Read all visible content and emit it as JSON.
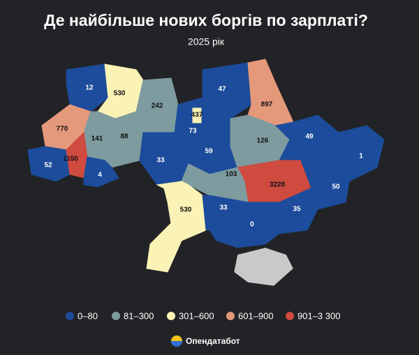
{
  "title": "Де найбільше нових боргів по зарплаті?",
  "subtitle": "2025 рік",
  "regions": [
    {
      "value": 12,
      "color": "#1c4c9b"
    },
    {
      "value": 530,
      "color": "#fbf3b5"
    },
    {
      "value": 242,
      "color": "#7e9b9f"
    },
    {
      "value": 73,
      "color": "#1c4c9b"
    },
    {
      "value": 47,
      "color": "#1c4c9b"
    },
    {
      "value": 897,
      "color": "#e3997a"
    },
    {
      "value": 770,
      "color": "#e3997a"
    },
    {
      "value": 141,
      "color": "#7e9b9f"
    },
    {
      "value": 88,
      "color": "#7e9b9f"
    },
    {
      "value": 33,
      "color": "#1c4c9b"
    },
    {
      "value": 59,
      "color": "#1c4c9b"
    },
    {
      "value": 126,
      "color": "#7e9b9f"
    },
    {
      "value": 49,
      "color": "#1c4c9b"
    },
    {
      "value": 1,
      "color": "#1c4c9b"
    },
    {
      "value": 50,
      "color": "#1c4c9b"
    },
    {
      "value": 3228,
      "color": "#cf4a3f"
    },
    {
      "value": 103,
      "color": "#7e9b9f"
    },
    {
      "value": 52,
      "color": "#1c4c9b"
    },
    {
      "value": 1150,
      "color": "#cf4a3f"
    },
    {
      "value": 4,
      "color": "#1c4c9b"
    },
    {
      "value": 530,
      "color": "#fbf3b5"
    },
    {
      "value": 33,
      "color": "#1c4c9b"
    },
    {
      "value": 35,
      "color": "#1c4c9b"
    },
    {
      "value": 0,
      "color": "#1c4c9b"
    },
    {
      "value": 437,
      "color": "#fbf3b5"
    }
  ],
  "legend": [
    {
      "label": "0–80",
      "color": "#1c4c9b"
    },
    {
      "label": "81–300",
      "color": "#7e9b9f"
    },
    {
      "label": "301–600",
      "color": "#fbf3b5"
    },
    {
      "label": "601–900",
      "color": "#e3997a"
    },
    {
      "label": "901–3 300",
      "color": "#cf4a3f"
    }
  ],
  "brand": "Опендатабот"
}
